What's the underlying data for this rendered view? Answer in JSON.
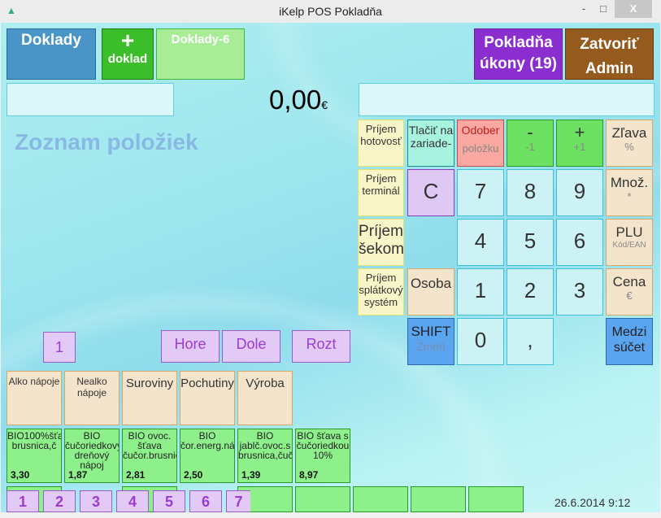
{
  "window": {
    "title": "iKelp POS Pokladňa",
    "minimize": "-",
    "maximize": "□",
    "close": "X"
  },
  "top": {
    "doklady": "Doklady",
    "new_plus": "+",
    "new_label": "doklad",
    "doklady6": "Doklady-6",
    "pokladna_l1": "Pokladňa",
    "pokladna_l2": "úkony (19)",
    "zatvorit_l1": "Zatvoriť",
    "zatvorit_l2": "Admin"
  },
  "total": {
    "amount": "0,00",
    "currency": "€"
  },
  "list_title": "Zoznam položiek",
  "keypad": {
    "prijem_hotovost": "Príjem hotovosť",
    "tlacit": "Tlačiť na zariade-",
    "odober": "Odober",
    "odober_sub": "položku",
    "minus": "-",
    "minus_sub": "-1",
    "plus": "+",
    "plus_sub": "+1",
    "zlava": "Zľava",
    "zlava_sub": "%",
    "prijem_terminal": "Príjem terminál",
    "clear": "C",
    "n7": "7",
    "n8": "8",
    "n9": "9",
    "mnoz": "Množ.",
    "mnoz_sub": "*",
    "prijem_sekom": "Príjem šekom",
    "n4": "4",
    "n5": "5",
    "n6": "6",
    "plu": "PLU",
    "plu_sub": "Kód/EAN",
    "prijem_splatkovy": "Príjem splátkový systém",
    "osoba": "Osoba",
    "n1": "1",
    "n2": "2",
    "n3": "3",
    "cena": "Cena",
    "cena_sub": "€",
    "shift": "SHIFT",
    "shift_sub": "Zmeň",
    "n0": "0",
    "comma": ",",
    "medzi": "Medzi súčet"
  },
  "nav": {
    "page": "1",
    "hore": "Hore",
    "dole": "Dole",
    "rozt": "Rozt"
  },
  "categories": [
    "Alko nápoje",
    "Nealko nápoje",
    "Suroviny",
    "Pochutiny",
    "Výroba"
  ],
  "products": [
    {
      "name": "BIO100%šťava brusnica,č",
      "price": "3,30"
    },
    {
      "name": "BIO čučoriedkový dreňový nápoj",
      "price": "1,87"
    },
    {
      "name": "BIO ovoc. šťava čučor.brusnic",
      "price": "2,81"
    },
    {
      "name": "BIO čor.energ.ná",
      "price": "2,50"
    },
    {
      "name": "BIO jablč.ovoc.s brusnica,čuč",
      "price": "1,39"
    },
    {
      "name": "BIO šťava s čučoriedkou 10%",
      "price": "8,97"
    }
  ],
  "pages": [
    "1",
    "2",
    "3",
    "4",
    "5",
    "6",
    "7"
  ],
  "datetime": "26.6.2014 9:12"
}
